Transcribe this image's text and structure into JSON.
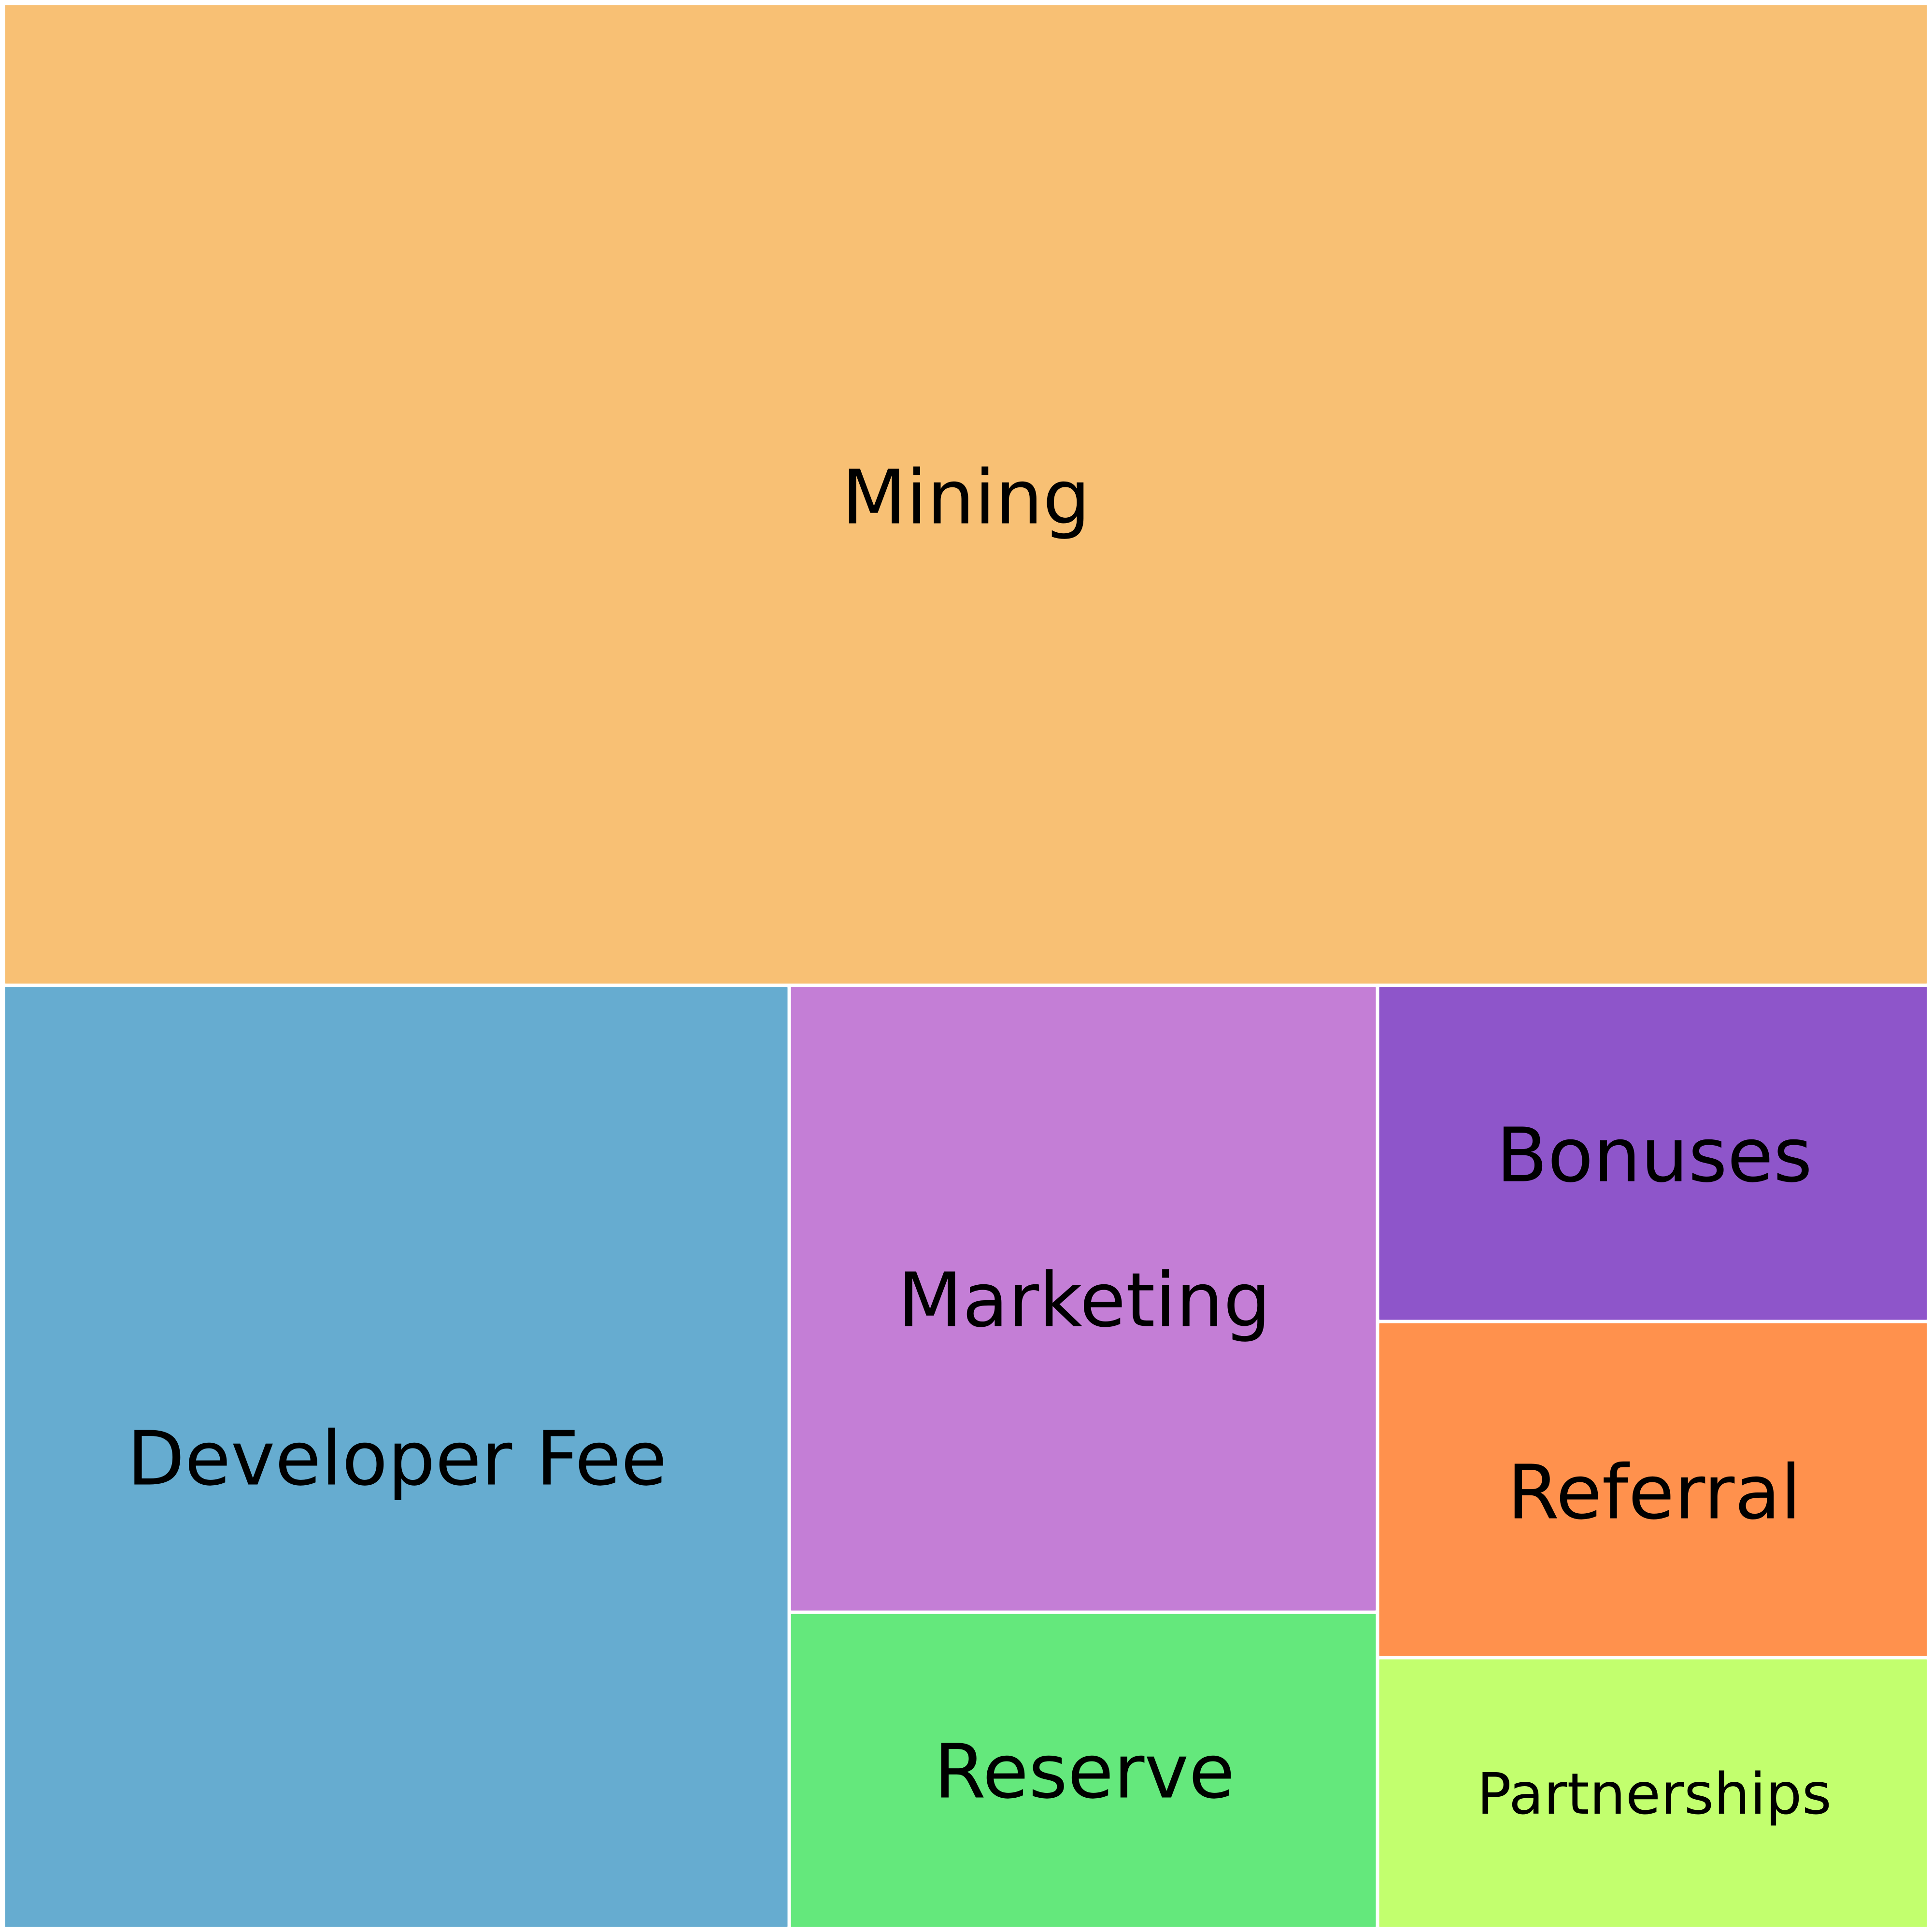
{
  "chart_data": {
    "type": "treemap",
    "title": "",
    "colors": {
      "Mining": "#F8C074",
      "Developer Fee": "#66ACD0",
      "Marketing": "#C47ED6",
      "Reserve": "#64E87C",
      "Bonuses": "#8E55CA",
      "Referral": "#FF914D",
      "Partnerships": "#C2FF6E"
    },
    "items": [
      {
        "label": "Mining",
        "value": 50
      },
      {
        "label": "Developer Fee",
        "value": 20
      },
      {
        "label": "Marketing",
        "value": 10
      },
      {
        "label": "Reserve",
        "value": 5
      },
      {
        "label": "Bonuses",
        "value": 5
      },
      {
        "label": "Referral",
        "value": 5
      },
      {
        "label": "Partnerships",
        "value": 5
      }
    ]
  }
}
